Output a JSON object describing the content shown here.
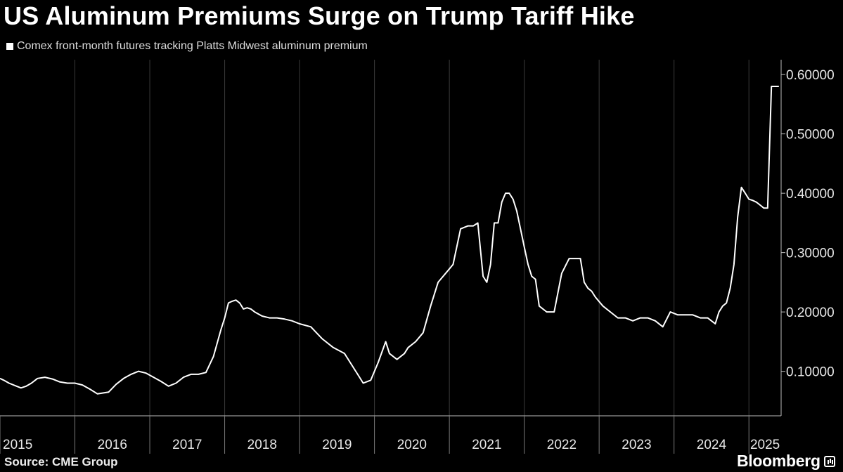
{
  "header": {
    "title": "US Aluminum Premiums Surge on Trump Tariff Hike"
  },
  "legend": {
    "label": "Comex front-month futures tracking Platts Midwest aluminum premium"
  },
  "footer": {
    "source": "Source: CME Group",
    "brand": "Bloomberg"
  },
  "chart_data": {
    "type": "line",
    "title": "US Aluminum Premiums Surge on Trump Tariff Hike",
    "xlabel": "",
    "ylabel": "",
    "xlim": [
      2015.0,
      2025.43
    ],
    "ylim": [
      0.025,
      0.625
    ],
    "y_ticks": [
      0.1,
      0.2,
      0.3,
      0.4,
      0.5,
      0.6
    ],
    "y_tick_labels": [
      "0.10000",
      "0.20000",
      "0.30000",
      "0.40000",
      "0.50000",
      "0.60000"
    ],
    "x_tick_labels": [
      "2015",
      "2016",
      "2017",
      "2018",
      "2019",
      "2020",
      "2021",
      "2022",
      "2023",
      "2024",
      "2025"
    ],
    "y_axis_position": "right",
    "grid": "vertical",
    "line_color": "#ffffff",
    "series": [
      {
        "name": "Comex front-month futures tracking Platts Midwest aluminum premium",
        "x": [
          2015.0,
          2015.05,
          2015.12,
          2015.2,
          2015.28,
          2015.35,
          2015.42,
          2015.5,
          2015.6,
          2015.7,
          2015.8,
          2015.9,
          2016.0,
          2016.1,
          2016.2,
          2016.3,
          2016.45,
          2016.55,
          2016.65,
          2016.75,
          2016.85,
          2016.95,
          2017.05,
          2017.15,
          2017.25,
          2017.35,
          2017.45,
          2017.55,
          2017.65,
          2017.75,
          2017.85,
          2017.95,
          2018.0,
          2018.05,
          2018.1,
          2018.15,
          2018.2,
          2018.25,
          2018.3,
          2018.35,
          2018.4,
          2018.5,
          2018.6,
          2018.7,
          2018.8,
          2018.9,
          2019.0,
          2019.15,
          2019.3,
          2019.45,
          2019.6,
          2019.75,
          2019.85,
          2019.95,
          2020.05,
          2020.15,
          2020.2,
          2020.3,
          2020.4,
          2020.45,
          2020.55,
          2020.65,
          2020.75,
          2020.85,
          2020.95,
          2021.05,
          2021.15,
          2021.25,
          2021.32,
          2021.38,
          2021.45,
          2021.5,
          2021.55,
          2021.6,
          2021.65,
          2021.7,
          2021.75,
          2021.8,
          2021.85,
          2021.9,
          2021.95,
          2022.0,
          2022.05,
          2022.1,
          2022.15,
          2022.2,
          2022.3,
          2022.4,
          2022.5,
          2022.6,
          2022.7,
          2022.75,
          2022.8,
          2022.85,
          2022.9,
          2022.95,
          2023.05,
          2023.15,
          2023.25,
          2023.35,
          2023.45,
          2023.55,
          2023.65,
          2023.75,
          2023.85,
          2023.95,
          2024.05,
          2024.15,
          2024.25,
          2024.35,
          2024.45,
          2024.5,
          2024.55,
          2024.6,
          2024.65,
          2024.7,
          2024.75,
          2024.8,
          2024.85,
          2024.9,
          2024.95,
          2025.0,
          2025.05,
          2025.1,
          2025.15,
          2025.2,
          2025.25,
          2025.3,
          2025.35,
          2025.4
        ],
        "y": [
          0.088,
          0.085,
          0.08,
          0.076,
          0.072,
          0.075,
          0.08,
          0.088,
          0.09,
          0.087,
          0.082,
          0.08,
          0.08,
          0.077,
          0.07,
          0.062,
          0.065,
          0.078,
          0.088,
          0.095,
          0.1,
          0.097,
          0.09,
          0.083,
          0.075,
          0.08,
          0.09,
          0.095,
          0.095,
          0.098,
          0.125,
          0.17,
          0.19,
          0.215,
          0.218,
          0.22,
          0.215,
          0.205,
          0.207,
          0.205,
          0.2,
          0.193,
          0.19,
          0.19,
          0.188,
          0.185,
          0.18,
          0.175,
          0.155,
          0.14,
          0.13,
          0.1,
          0.08,
          0.085,
          0.115,
          0.15,
          0.13,
          0.12,
          0.13,
          0.14,
          0.15,
          0.165,
          0.21,
          0.25,
          0.265,
          0.28,
          0.34,
          0.345,
          0.345,
          0.35,
          0.26,
          0.25,
          0.28,
          0.35,
          0.35,
          0.385,
          0.4,
          0.4,
          0.39,
          0.37,
          0.34,
          0.31,
          0.28,
          0.26,
          0.255,
          0.21,
          0.2,
          0.2,
          0.265,
          0.29,
          0.29,
          0.29,
          0.25,
          0.24,
          0.235,
          0.225,
          0.21,
          0.2,
          0.19,
          0.19,
          0.185,
          0.19,
          0.19,
          0.185,
          0.175,
          0.2,
          0.195,
          0.195,
          0.195,
          0.19,
          0.19,
          0.185,
          0.18,
          0.2,
          0.21,
          0.215,
          0.24,
          0.28,
          0.36,
          0.41,
          0.4,
          0.39,
          0.388,
          0.385,
          0.38,
          0.375,
          0.375,
          0.58,
          0.58,
          0.58
        ],
        "color": "#ffffff"
      }
    ]
  }
}
